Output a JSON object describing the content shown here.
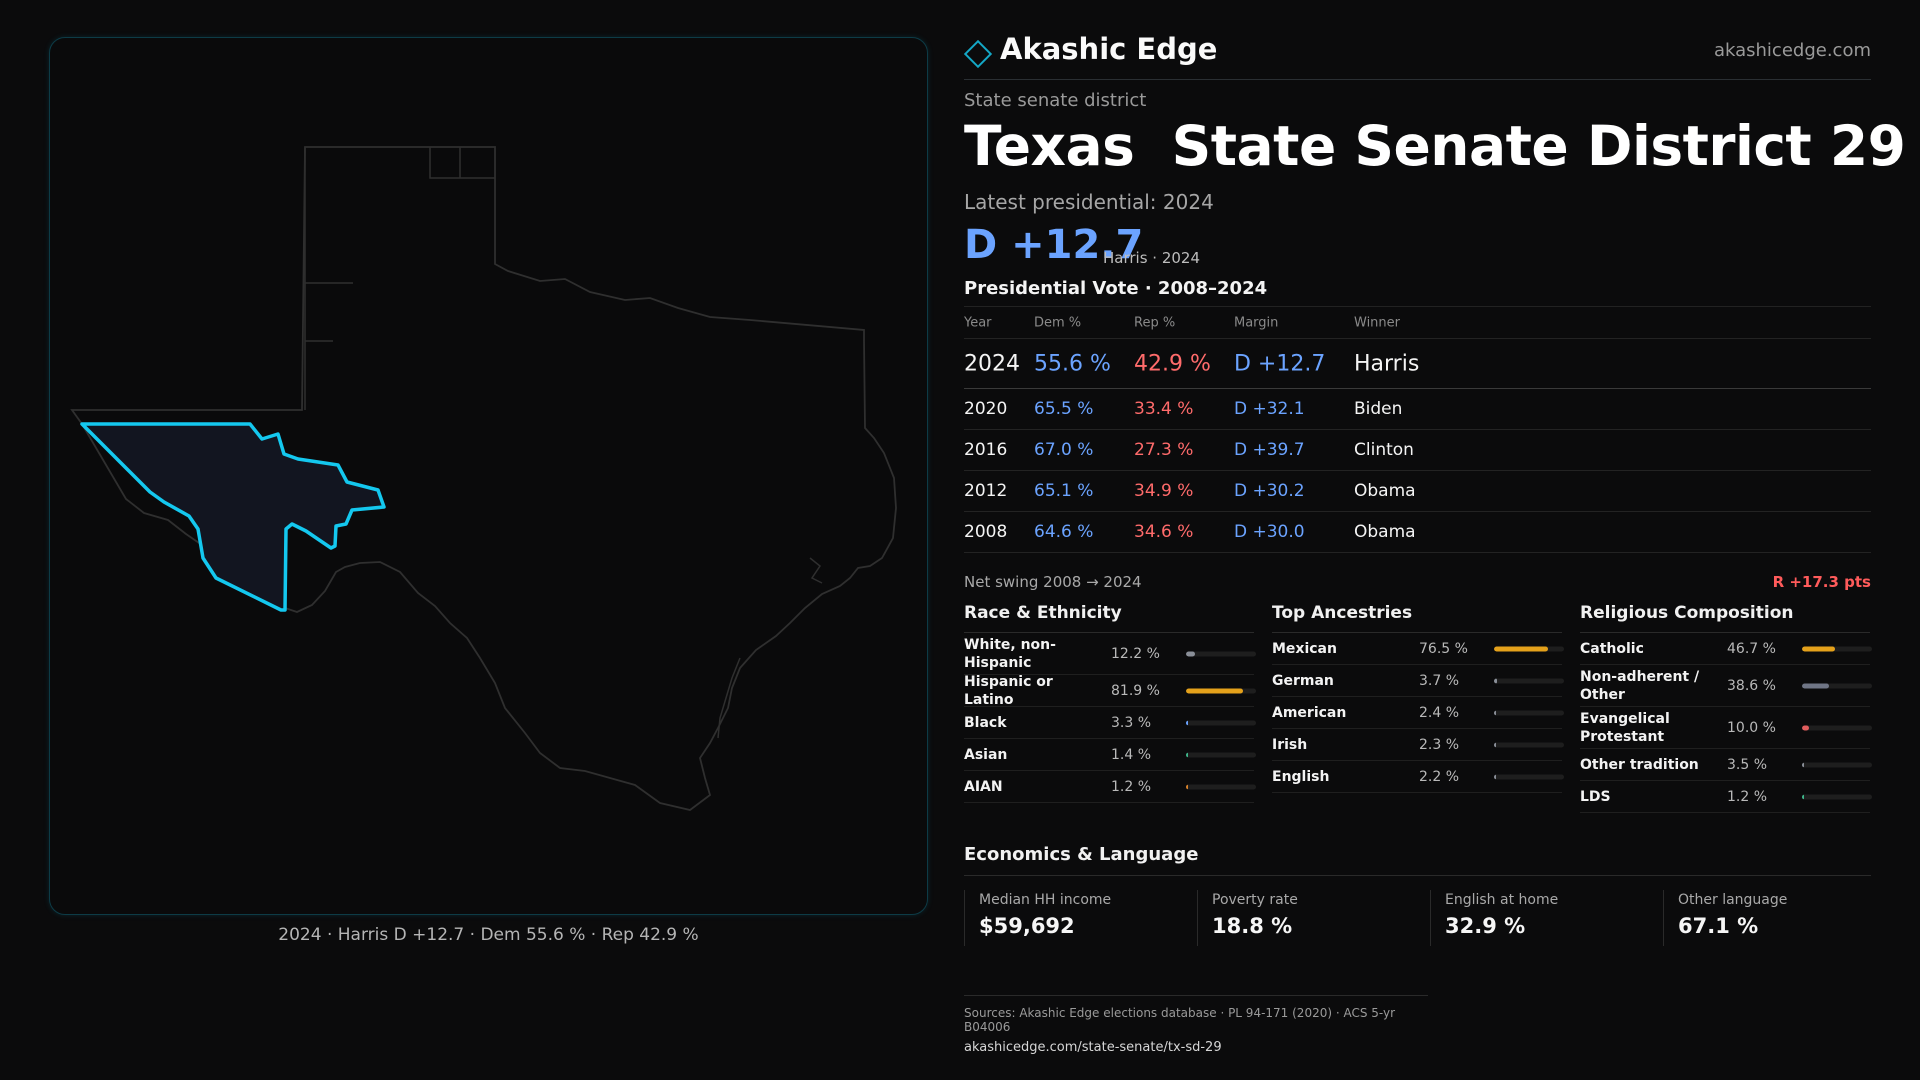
{
  "brand": {
    "name": "Akashic Edge",
    "url": "akashicedge.com"
  },
  "header": {
    "kind": "State senate district",
    "title": "Texas  State Senate District 29",
    "latest": "Latest presidential: 2024",
    "margin": "D +12.7",
    "margin_sub": "Harris · 2024"
  },
  "map": {
    "caption": "2024 · Harris D +12.7 · Dem 55.6 % · Rep 42.9 %"
  },
  "vote": {
    "title": "Presidential Vote · 2008–2024",
    "headers": {
      "year": "Year",
      "dem": "Dem %",
      "rep": "Rep %",
      "margin": "Margin",
      "winner": "Winner"
    },
    "rows": [
      {
        "year": "2024",
        "dem": "55.6 %",
        "rep": "42.9 %",
        "margin": "D +12.7",
        "winner": "Harris"
      },
      {
        "year": "2020",
        "dem": "65.5 %",
        "rep": "33.4 %",
        "margin": "D +32.1",
        "winner": "Biden"
      },
      {
        "year": "2016",
        "dem": "67.0 %",
        "rep": "27.3 %",
        "margin": "D +39.7",
        "winner": "Clinton"
      },
      {
        "year": "2012",
        "dem": "65.1 %",
        "rep": "34.9 %",
        "margin": "D +30.2",
        "winner": "Obama"
      },
      {
        "year": "2008",
        "dem": "64.6 %",
        "rep": "34.6 %",
        "margin": "D +30.0",
        "winner": "Obama"
      }
    ],
    "swing_label": "Net swing 2008 → 2024",
    "swing_value": "R +17.3 pts"
  },
  "race": {
    "title": "Race & Ethnicity",
    "rows": [
      {
        "label": "White, non-Hispanic",
        "value": "12.2 %",
        "pct": 12.2,
        "color": "#8a8f98"
      },
      {
        "label": "Hispanic or Latino",
        "value": "81.9 %",
        "pct": 81.9,
        "color": "#e4a11b"
      },
      {
        "label": "Black",
        "value": "3.3 %",
        "pct": 3.3,
        "color": "#6ba3ff"
      },
      {
        "label": "Asian",
        "value": "1.4 %",
        "pct": 1.4,
        "color": "#3fb68b"
      },
      {
        "label": "AIAN",
        "value": "1.2 %",
        "pct": 1.2,
        "color": "#d9822b"
      }
    ]
  },
  "ancestry": {
    "title": "Top Ancestries",
    "rows": [
      {
        "label": "Mexican",
        "value": "76.5 %",
        "pct": 76.5,
        "color": "#e4a11b"
      },
      {
        "label": "German",
        "value": "3.7 %",
        "pct": 3.7,
        "color": "#8a8f98"
      },
      {
        "label": "American",
        "value": "2.4 %",
        "pct": 2.4,
        "color": "#8a8f98"
      },
      {
        "label": "Irish",
        "value": "2.3 %",
        "pct": 2.3,
        "color": "#8a8f98"
      },
      {
        "label": "English",
        "value": "2.2 %",
        "pct": 2.2,
        "color": "#8a8f98"
      }
    ]
  },
  "religion": {
    "title": "Religious Composition",
    "rows": [
      {
        "label": "Catholic",
        "value": "46.7 %",
        "pct": 46.7,
        "color": "#e4a11b"
      },
      {
        "label": "Non-adherent / Other",
        "value": "38.6 %",
        "pct": 38.6,
        "color": "#6f7585"
      },
      {
        "label": "Evangelical Protestant",
        "value": "10.0 %",
        "pct": 10.0,
        "color": "#e05d5d"
      },
      {
        "label": "Other tradition",
        "value": "3.5 %",
        "pct": 3.5,
        "color": "#8a8f98"
      },
      {
        "label": "LDS",
        "value": "1.2 %",
        "pct": 1.2,
        "color": "#3fb68b"
      }
    ]
  },
  "economics": {
    "title": "Economics & Language",
    "cells": [
      {
        "label": "Median HH income",
        "value": "$59,692"
      },
      {
        "label": "Poverty rate",
        "value": "18.8 %"
      },
      {
        "label": "English at home",
        "value": "32.9 %"
      },
      {
        "label": "Other language",
        "value": "67.1 %"
      }
    ]
  },
  "sources": {
    "text": "Sources: Akashic Edge elections database · PL 94-171 (2020) · ACS 5-yr B04006",
    "link": "akashicedge.com/state-senate/tx-sd-29"
  },
  "colors": {
    "accent": "#14c8ef",
    "dem": "#6ba3ff",
    "rep": "#ff6b6b"
  }
}
